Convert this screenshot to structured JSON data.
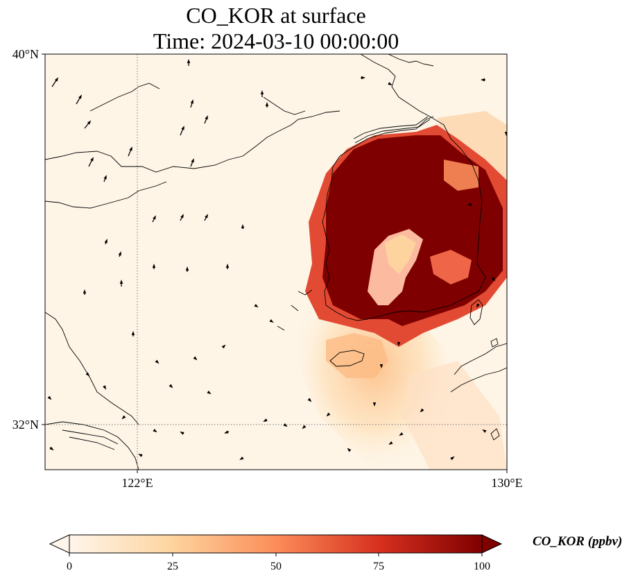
{
  "figure": {
    "title_line1": "CO_KOR at surface",
    "title_line2": "Time: 2024-03-10 00:00:00"
  },
  "map": {
    "lat_labels": [
      "40°N",
      "32°N"
    ],
    "lon_labels": [
      "122°E",
      "130°E"
    ],
    "gridlines": "dotted",
    "ocean_background": "#fef5e7",
    "coastline_color": "#000000"
  },
  "colorbar": {
    "label": "CO_KOR (ppbv)",
    "ticks": [
      "0",
      "25",
      "50",
      "75",
      "100"
    ],
    "range": [
      0,
      100
    ],
    "extend": "both",
    "colors": [
      "#fff5eb",
      "#fdd49e",
      "#fc8d59",
      "#d7301f",
      "#7f0000"
    ]
  }
}
